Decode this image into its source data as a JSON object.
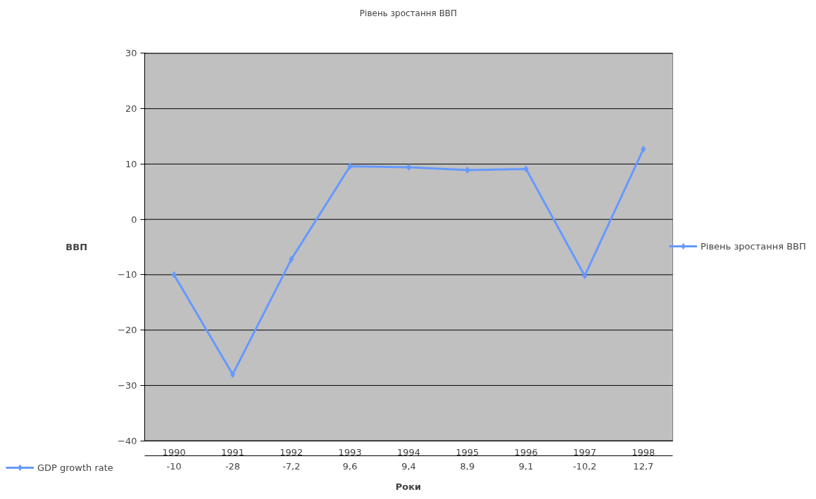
{
  "chart_data": {
    "type": "line",
    "title": "Рівень зростання ВВП",
    "xlabel": "Роки",
    "ylabel": "ВВП",
    "categories": [
      "1990",
      "1991",
      "1992",
      "1993",
      "1994",
      "1995",
      "1996",
      "1997",
      "1998"
    ],
    "series": [
      {
        "name": "Рівень зростання ВВП",
        "color": "#6699ff",
        "values": [
          -10,
          -28,
          -7.2,
          9.6,
          9.4,
          8.9,
          9.1,
          -10.2,
          12.7
        ],
        "value_labels": [
          "-10",
          "-28",
          "-7,2",
          "9,6",
          "9,4",
          "8,9",
          "9,1",
          "-10,2",
          "12,7"
        ]
      }
    ],
    "annotations": [
      "GDP growth rate"
    ],
    "ylim": [
      -40,
      30
    ],
    "yticks": [
      -40,
      -30,
      -20,
      -10,
      0,
      10,
      20,
      30
    ],
    "grid": "y",
    "legend": "right",
    "marker": "diamond",
    "line_style": "solid"
  }
}
